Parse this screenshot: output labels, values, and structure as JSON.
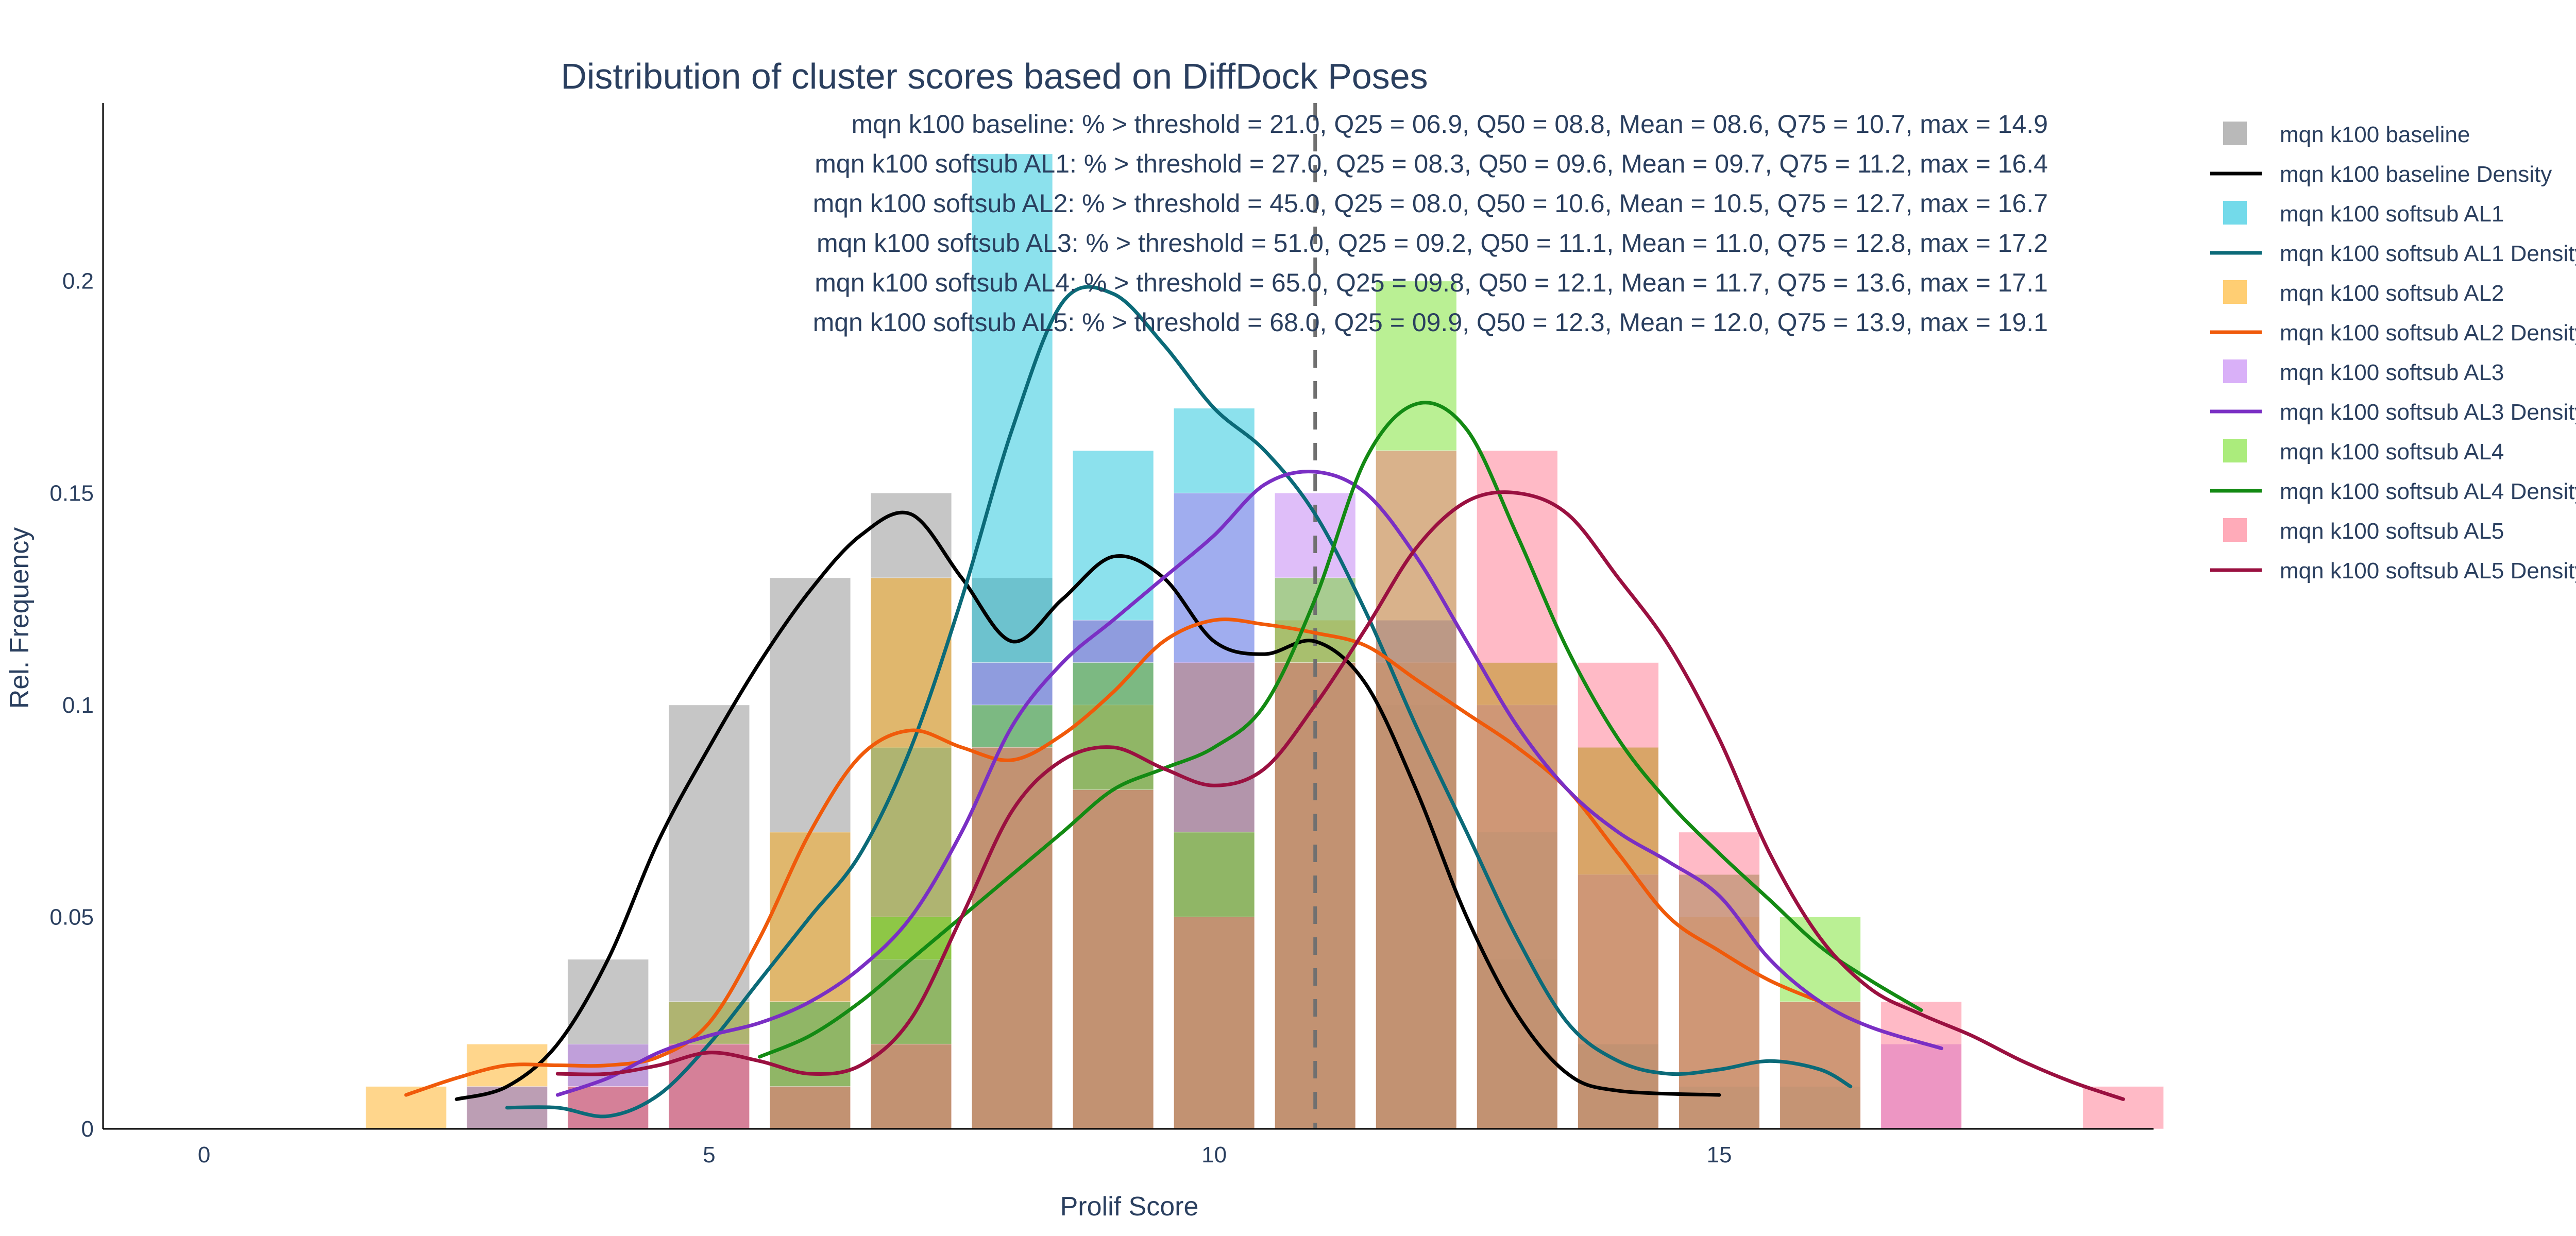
{
  "chart_data": {
    "type": "bar",
    "title": "Distribution of cluster scores based on DiffDock Poses",
    "xlabel": "Prolif Score",
    "ylabel": "Rel. Frequency",
    "xlim": [
      -1,
      19.3
    ],
    "ylim": [
      0,
      0.242
    ],
    "x_ticks": [
      0,
      5,
      10,
      15
    ],
    "y_ticks": [
      0,
      0.05,
      0.1,
      0.15,
      0.2
    ],
    "y_tick_labels": [
      "0",
      "0.05",
      "0.1",
      "0.15",
      "0.2"
    ],
    "bar_width": 0.8,
    "threshold": 11,
    "grid": false,
    "legend_position": "right",
    "annotations": [
      "mqn k100 baseline: % > threshold = 21.0, Q25 = 06.9, Q50 = 08.8, Mean = 08.6, Q75 = 10.7, max = 14.9",
      "mqn k100 softsub AL1: % > threshold = 27.0, Q25 = 08.3, Q50 = 09.6, Mean = 09.7, Q75 = 11.2, max = 16.4",
      "mqn k100 softsub AL2: % > threshold = 45.0, Q25 = 08.0, Q50 = 10.6, Mean = 10.5, Q75 = 12.7, max = 16.7",
      "mqn k100 softsub AL3: % > threshold = 51.0, Q25 = 09.2, Q50 = 11.1, Mean = 11.0, Q75 = 12.8, max = 17.2",
      "mqn k100 softsub AL4: % > threshold = 65.0, Q25 = 09.8, Q50 = 12.1, Mean = 11.7, Q75 = 13.6, max = 17.1",
      "mqn k100 softsub AL5: % > threshold = 68.0, Q25 = 09.9, Q50 = 12.3, Mean = 12.0, Q75 = 13.9, max = 19.1"
    ],
    "series": [
      {
        "name": "mqn k100 baseline",
        "density_name": "mqn k100 baseline Density",
        "bar_color": "#808080",
        "line_color": "#000000",
        "bars": [
          [
            4,
            0.04
          ],
          [
            5,
            0.1
          ],
          [
            6,
            0.13
          ],
          [
            7,
            0.15
          ],
          [
            8,
            0.13
          ],
          [
            9,
            0.12
          ],
          [
            10,
            0.11
          ],
          [
            11,
            0.11
          ],
          [
            12,
            0.1
          ],
          [
            13,
            0.04
          ],
          [
            14,
            0.02
          ]
        ],
        "density": [
          [
            2.5,
            0.007
          ],
          [
            3,
            0.01
          ],
          [
            3.5,
            0.02
          ],
          [
            4,
            0.04
          ],
          [
            4.5,
            0.068
          ],
          [
            5,
            0.09
          ],
          [
            5.5,
            0.11
          ],
          [
            6,
            0.127
          ],
          [
            6.5,
            0.14
          ],
          [
            7,
            0.145
          ],
          [
            7.5,
            0.13
          ],
          [
            8,
            0.115
          ],
          [
            8.5,
            0.125
          ],
          [
            9,
            0.135
          ],
          [
            9.5,
            0.13
          ],
          [
            10,
            0.115
          ],
          [
            10.5,
            0.112
          ],
          [
            11,
            0.115
          ],
          [
            11.5,
            0.105
          ],
          [
            12,
            0.08
          ],
          [
            12.5,
            0.05
          ],
          [
            13,
            0.027
          ],
          [
            13.5,
            0.013
          ],
          [
            14,
            0.009
          ],
          [
            15,
            0.008
          ]
        ]
      },
      {
        "name": "mqn k100 softsub AL1",
        "density_name": "mqn k100 softsub AL1 Density",
        "bar_color": "#00bcd8",
        "line_color": "#0b6a78",
        "bars": [
          [
            3,
            0.01
          ],
          [
            4,
            0.01
          ],
          [
            5,
            0.03
          ],
          [
            6,
            0.03
          ],
          [
            7,
            0.09
          ],
          [
            8,
            0.23
          ],
          [
            9,
            0.16
          ],
          [
            10,
            0.17
          ],
          [
            11,
            0.11
          ],
          [
            12,
            0.12
          ],
          [
            13,
            0.07
          ],
          [
            14,
            0.02
          ],
          [
            15,
            0.01
          ],
          [
            16,
            0.01
          ]
        ],
        "density": [
          [
            3,
            0.005
          ],
          [
            3.5,
            0.005
          ],
          [
            4,
            0.003
          ],
          [
            4.5,
            0.008
          ],
          [
            5,
            0.02
          ],
          [
            5.5,
            0.035
          ],
          [
            6,
            0.05
          ],
          [
            6.5,
            0.065
          ],
          [
            7,
            0.09
          ],
          [
            7.5,
            0.125
          ],
          [
            8,
            0.165
          ],
          [
            8.5,
            0.195
          ],
          [
            9,
            0.197
          ],
          [
            9.5,
            0.185
          ],
          [
            10,
            0.17
          ],
          [
            10.5,
            0.16
          ],
          [
            11,
            0.145
          ],
          [
            11.5,
            0.122
          ],
          [
            12,
            0.095
          ],
          [
            12.5,
            0.07
          ],
          [
            13,
            0.045
          ],
          [
            13.5,
            0.025
          ],
          [
            14,
            0.016
          ],
          [
            14.5,
            0.013
          ],
          [
            15,
            0.014
          ],
          [
            15.5,
            0.016
          ],
          [
            16,
            0.014
          ],
          [
            16.3,
            0.01
          ]
        ]
      },
      {
        "name": "mqn k100 softsub AL2",
        "density_name": "mqn k100 softsub AL2 Density",
        "bar_color": "#ffa500",
        "line_color": "#f05a0a",
        "bars": [
          [
            2,
            0.01
          ],
          [
            3,
            0.02
          ],
          [
            4,
            0.01
          ],
          [
            5,
            0.03
          ],
          [
            6,
            0.07
          ],
          [
            7,
            0.13
          ],
          [
            8,
            0.09
          ],
          [
            9,
            0.1
          ],
          [
            10,
            0.11
          ],
          [
            11,
            0.12
          ],
          [
            12,
            0.11
          ],
          [
            13,
            0.11
          ],
          [
            14,
            0.09
          ],
          [
            15,
            0.05
          ],
          [
            16,
            0.03
          ]
        ],
        "density": [
          [
            2,
            0.008
          ],
          [
            2.5,
            0.012
          ],
          [
            3,
            0.015
          ],
          [
            3.5,
            0.015
          ],
          [
            4,
            0.015
          ],
          [
            4.5,
            0.017
          ],
          [
            5,
            0.025
          ],
          [
            5.5,
            0.045
          ],
          [
            6,
            0.07
          ],
          [
            6.5,
            0.088
          ],
          [
            7,
            0.094
          ],
          [
            7.5,
            0.09
          ],
          [
            8,
            0.087
          ],
          [
            8.5,
            0.093
          ],
          [
            9,
            0.103
          ],
          [
            9.5,
            0.115
          ],
          [
            10,
            0.12
          ],
          [
            10.5,
            0.119
          ],
          [
            11,
            0.117
          ],
          [
            11.5,
            0.114
          ],
          [
            12,
            0.106
          ],
          [
            12.5,
            0.098
          ],
          [
            13,
            0.09
          ],
          [
            13.5,
            0.08
          ],
          [
            14,
            0.065
          ],
          [
            14.5,
            0.05
          ],
          [
            15,
            0.042
          ],
          [
            15.5,
            0.035
          ],
          [
            16,
            0.03
          ]
        ]
      },
      {
        "name": "mqn k100 softsub AL3",
        "density_name": "mqn k100 softsub AL3 Density",
        "bar_color": "#b96ff2",
        "line_color": "#7a2fc4",
        "bars": [
          [
            3,
            0.01
          ],
          [
            4,
            0.02
          ],
          [
            5,
            0.02
          ],
          [
            6,
            0.03
          ],
          [
            7,
            0.04
          ],
          [
            8,
            0.11
          ],
          [
            9,
            0.12
          ],
          [
            10,
            0.15
          ],
          [
            11,
            0.15
          ],
          [
            12,
            0.12
          ],
          [
            13,
            0.1
          ],
          [
            14,
            0.06
          ],
          [
            15,
            0.06
          ],
          [
            16,
            0.03
          ],
          [
            17,
            0.02
          ]
        ],
        "density": [
          [
            3.5,
            0.008
          ],
          [
            4,
            0.012
          ],
          [
            4.5,
            0.018
          ],
          [
            5,
            0.022
          ],
          [
            5.5,
            0.025
          ],
          [
            6,
            0.03
          ],
          [
            6.5,
            0.038
          ],
          [
            7,
            0.05
          ],
          [
            7.5,
            0.07
          ],
          [
            8,
            0.095
          ],
          [
            8.5,
            0.11
          ],
          [
            9,
            0.12
          ],
          [
            9.5,
            0.13
          ],
          [
            10,
            0.14
          ],
          [
            10.5,
            0.152
          ],
          [
            11,
            0.155
          ],
          [
            11.5,
            0.15
          ],
          [
            12,
            0.135
          ],
          [
            12.5,
            0.115
          ],
          [
            13,
            0.095
          ],
          [
            13.5,
            0.08
          ],
          [
            14,
            0.07
          ],
          [
            14.5,
            0.063
          ],
          [
            15,
            0.055
          ],
          [
            15.5,
            0.04
          ],
          [
            16,
            0.03
          ],
          [
            16.5,
            0.024
          ],
          [
            17.2,
            0.019
          ]
        ]
      },
      {
        "name": "mqn k100 softsub AL4",
        "density_name": "mqn k100 softsub AL4 Density",
        "bar_color": "#66dd11",
        "line_color": "#138a13",
        "bars": [
          [
            6,
            0.03
          ],
          [
            7,
            0.05
          ],
          [
            8,
            0.1
          ],
          [
            9,
            0.11
          ],
          [
            10,
            0.07
          ],
          [
            11,
            0.13
          ],
          [
            12,
            0.2
          ],
          [
            13,
            0.11
          ],
          [
            14,
            0.09
          ],
          [
            15,
            0.06
          ],
          [
            16,
            0.05
          ]
        ],
        "density": [
          [
            5.5,
            0.017
          ],
          [
            6,
            0.022
          ],
          [
            6.5,
            0.03
          ],
          [
            7,
            0.04
          ],
          [
            7.5,
            0.05
          ],
          [
            8,
            0.06
          ],
          [
            8.5,
            0.07
          ],
          [
            9,
            0.08
          ],
          [
            9.5,
            0.085
          ],
          [
            10,
            0.09
          ],
          [
            10.5,
            0.1
          ],
          [
            11,
            0.125
          ],
          [
            11.5,
            0.158
          ],
          [
            12,
            0.171
          ],
          [
            12.5,
            0.165
          ],
          [
            13,
            0.14
          ],
          [
            13.5,
            0.113
          ],
          [
            14,
            0.092
          ],
          [
            14.5,
            0.077
          ],
          [
            15,
            0.065
          ],
          [
            15.5,
            0.054
          ],
          [
            16,
            0.043
          ],
          [
            16.5,
            0.035
          ],
          [
            17,
            0.028
          ]
        ]
      },
      {
        "name": "mqn k100 softsub AL5",
        "density_name": "mqn k100 softsub AL5 Density",
        "bar_color": "#ff6680",
        "line_color": "#9a1040",
        "bars": [
          [
            4,
            0.01
          ],
          [
            5,
            0.02
          ],
          [
            6,
            0.01
          ],
          [
            7,
            0.02
          ],
          [
            8,
            0.09
          ],
          [
            9,
            0.08
          ],
          [
            10,
            0.05
          ],
          [
            11,
            0.11
          ],
          [
            12,
            0.16
          ],
          [
            13,
            0.16
          ],
          [
            14,
            0.11
          ],
          [
            15,
            0.07
          ],
          [
            16,
            0.03
          ],
          [
            17,
            0.03
          ],
          [
            19,
            0.01
          ]
        ],
        "density": [
          [
            3.5,
            0.013
          ],
          [
            4,
            0.013
          ],
          [
            4.5,
            0.015
          ],
          [
            5,
            0.018
          ],
          [
            5.5,
            0.016
          ],
          [
            6,
            0.013
          ],
          [
            6.5,
            0.015
          ],
          [
            7,
            0.026
          ],
          [
            7.5,
            0.05
          ],
          [
            8,
            0.075
          ],
          [
            8.5,
            0.087
          ],
          [
            9,
            0.09
          ],
          [
            9.5,
            0.085
          ],
          [
            10,
            0.081
          ],
          [
            10.5,
            0.085
          ],
          [
            11,
            0.1
          ],
          [
            11.5,
            0.118
          ],
          [
            12,
            0.137
          ],
          [
            12.5,
            0.148
          ],
          [
            13,
            0.15
          ],
          [
            13.5,
            0.145
          ],
          [
            14,
            0.13
          ],
          [
            14.5,
            0.114
          ],
          [
            15,
            0.092
          ],
          [
            15.5,
            0.065
          ],
          [
            16,
            0.045
          ],
          [
            16.5,
            0.033
          ],
          [
            17,
            0.027
          ],
          [
            17.5,
            0.022
          ],
          [
            18,
            0.016
          ],
          [
            18.5,
            0.011
          ],
          [
            19,
            0.007
          ]
        ]
      }
    ]
  }
}
